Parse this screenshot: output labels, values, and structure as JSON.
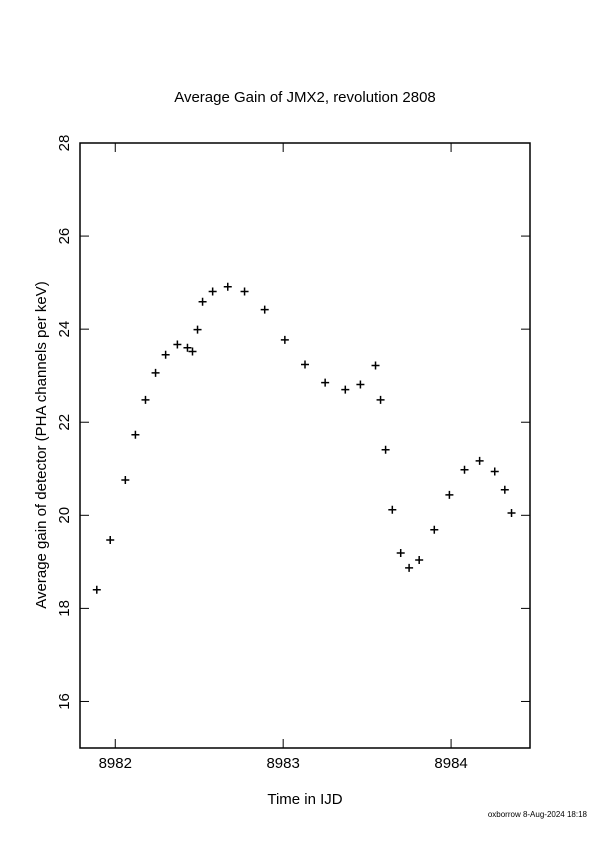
{
  "chart_data": {
    "type": "scatter",
    "title": "Average Gain of JMX2, revolution 2808",
    "x_label": "Time in IJD",
    "y_label": "Average gain of detector (PHA channels per keV)",
    "footer": "oxborrow  8-Aug-2024 18:18",
    "marker": "plus",
    "color": "#000000",
    "x": [
      8981.89,
      8981.97,
      8982.06,
      8982.12,
      8982.18,
      8982.24,
      8982.3,
      8982.37,
      8982.43,
      8982.46,
      8982.49,
      8982.52,
      8982.58,
      8982.67,
      8982.77,
      8982.89,
      8983.01,
      8983.13,
      8983.25,
      8983.37,
      8983.46,
      8983.55,
      8983.58,
      8983.61,
      8983.65,
      8983.7,
      8983.75,
      8983.81,
      8983.9,
      8983.99,
      8984.08,
      8984.17,
      8984.26,
      8984.32,
      8984.36
    ],
    "y": [
      18.4,
      19.47,
      20.76,
      21.73,
      22.48,
      23.06,
      23.45,
      23.67,
      23.6,
      23.52,
      23.99,
      24.59,
      24.81,
      24.91,
      24.81,
      24.42,
      23.77,
      23.24,
      22.85,
      22.7,
      22.81,
      23.22,
      22.48,
      21.41,
      20.12,
      19.19,
      18.87,
      19.04,
      19.69,
      20.44,
      20.98,
      21.17,
      20.94,
      20.55,
      20.05
    ],
    "xlim": [
      8981.79,
      8984.47
    ],
    "xticks": [
      8982,
      8983,
      8984
    ],
    "ylim": [
      15,
      28
    ],
    "yticks": [
      16,
      18,
      20,
      22,
      24,
      26,
      28
    ]
  }
}
